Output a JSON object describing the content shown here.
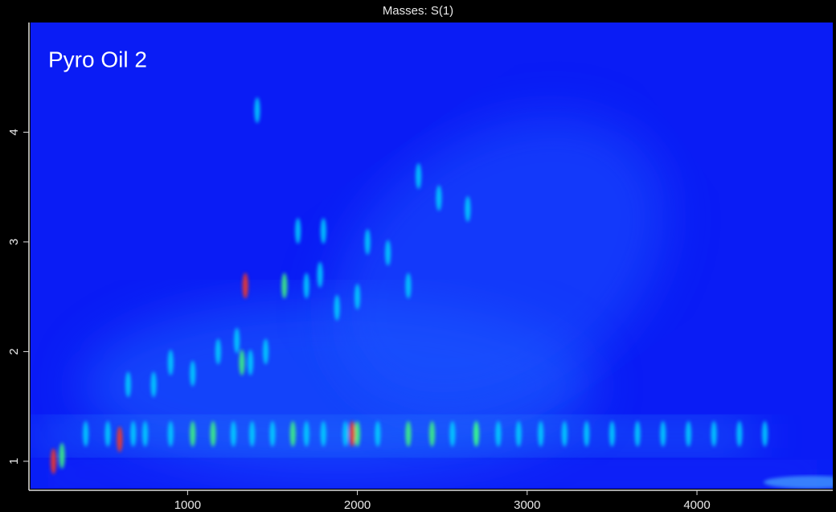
{
  "chart_data": {
    "type": "heatmap",
    "title": "Masses:  S(1)",
    "annotation": "Pyro Oil 2",
    "xlim": [
      75,
      4800
    ],
    "xticks": [
      1000,
      2000,
      3000,
      4000
    ],
    "ylim": [
      0.75,
      5
    ],
    "yticks": [
      1,
      2,
      3,
      4
    ],
    "background": "#0a1cf5",
    "series": [
      {
        "color": "#00d8ff",
        "x": [
          400,
          530,
          680,
          750,
          900,
          1270,
          1380,
          1500,
          1700,
          1800,
          1930,
          2120,
          2560,
          2700,
          2830,
          2950,
          3080,
          3220,
          3350,
          3500,
          3650,
          3800,
          3950,
          4100,
          4250,
          4400,
          1290,
          1370,
          1460,
          1180,
          1030,
          900,
          1700,
          1780,
          1880,
          2060,
          2180,
          2360,
          2480,
          2650,
          1650,
          1800,
          2000,
          2300,
          800,
          650,
          1410
        ],
        "values": [
          1.25,
          1.25,
          1.25,
          1.25,
          1.25,
          1.25,
          1.25,
          1.25,
          1.25,
          1.25,
          1.25,
          1.25,
          1.25,
          1.25,
          1.25,
          1.25,
          1.25,
          1.25,
          1.25,
          1.25,
          1.25,
          1.25,
          1.25,
          1.25,
          1.25,
          1.25,
          2.1,
          1.9,
          2.0,
          2.0,
          1.8,
          1.9,
          2.6,
          2.7,
          2.4,
          3.0,
          2.9,
          3.6,
          3.4,
          3.3,
          3.1,
          3.1,
          2.5,
          2.6,
          1.7,
          1.7,
          4.2
        ]
      },
      {
        "color": "#40ff7a",
        "x": [
          1570,
          1030,
          1150,
          1620,
          2440,
          2300,
          260,
          1320,
          2000,
          2700
        ],
        "values": [
          2.6,
          1.25,
          1.25,
          1.25,
          1.25,
          1.25,
          1.05,
          1.9,
          1.25,
          1.25
        ]
      },
      {
        "color": "#ff3a1a",
        "x": [
          1340,
          600,
          1970,
          210
        ],
        "values": [
          2.6,
          1.2,
          1.25,
          1.0
        ]
      }
    ]
  }
}
